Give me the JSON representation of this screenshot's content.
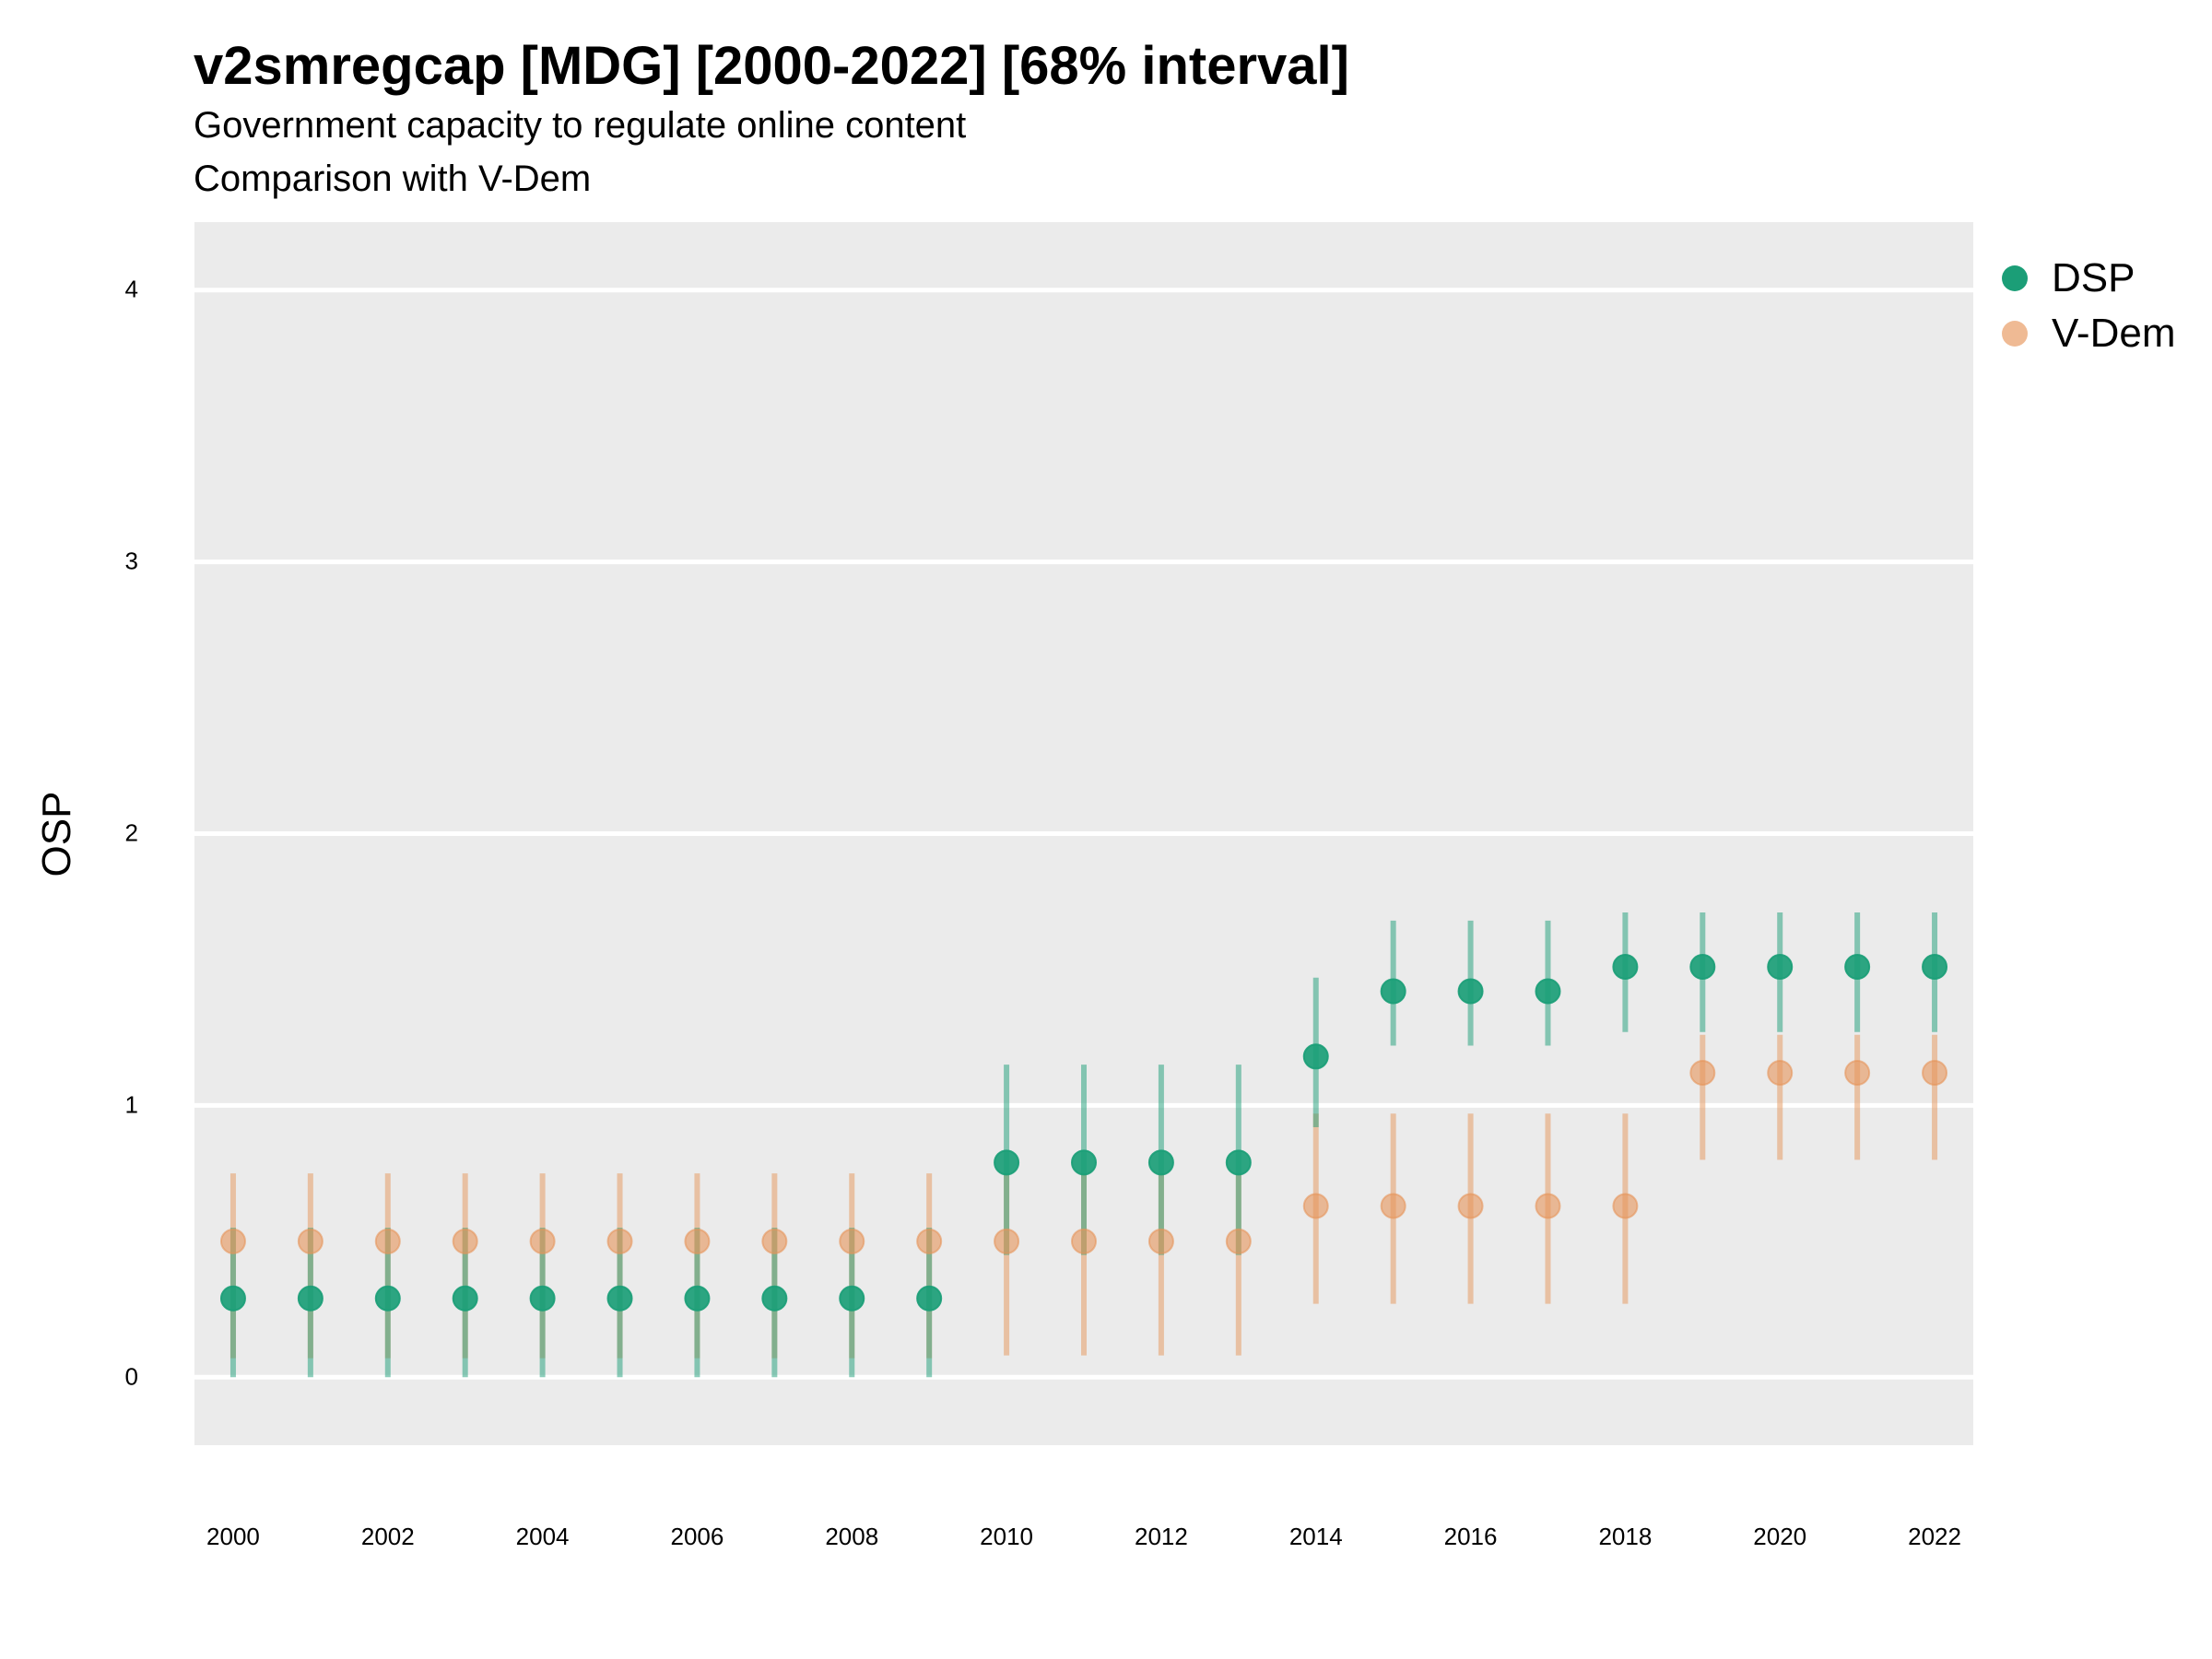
{
  "title": "v2smregcap [MDG] [2000-2022] [68% interval]",
  "subtitle_line1": "Government capacity to regulate online content",
  "subtitle_line2": "Comparison with V-Dem",
  "colors": {
    "panel": "#EBEBEB",
    "gridline": "#FFFFFF",
    "dsp": "#1B9E77",
    "vdem": "#E6955A"
  },
  "chart_data": {
    "type": "scatter",
    "ylabel": "OSP",
    "xlabel": "",
    "ylim": [
      -0.25,
      4.25
    ],
    "xlim": [
      1999.5,
      2022.5
    ],
    "yticks": [
      0,
      1,
      2,
      3,
      4
    ],
    "xticks": [
      2000,
      2002,
      2004,
      2006,
      2008,
      2010,
      2012,
      2014,
      2016,
      2018,
      2020,
      2022
    ],
    "grid": true,
    "legend_position": "right",
    "interval": "68%",
    "x": [
      2000,
      2001,
      2002,
      2003,
      2004,
      2005,
      2006,
      2007,
      2008,
      2009,
      2010,
      2011,
      2012,
      2013,
      2014,
      2015,
      2016,
      2017,
      2018,
      2019,
      2020,
      2021,
      2022
    ],
    "series": [
      {
        "name": "DSP",
        "color": "#1B9E77",
        "values": [
          0.29,
          0.29,
          0.29,
          0.29,
          0.29,
          0.29,
          0.29,
          0.29,
          0.29,
          0.29,
          0.79,
          0.79,
          0.79,
          0.79,
          1.18,
          1.42,
          1.42,
          1.42,
          1.51,
          1.51,
          1.51,
          1.51,
          1.51
        ],
        "lower": [
          0.0,
          0.0,
          0.0,
          0.0,
          0.0,
          0.0,
          0.0,
          0.0,
          0.0,
          0.0,
          0.45,
          0.45,
          0.45,
          0.45,
          0.92,
          1.22,
          1.22,
          1.22,
          1.27,
          1.27,
          1.27,
          1.27,
          1.27
        ],
        "upper": [
          0.55,
          0.55,
          0.55,
          0.55,
          0.55,
          0.55,
          0.55,
          0.55,
          0.55,
          0.55,
          1.15,
          1.15,
          1.15,
          1.15,
          1.47,
          1.68,
          1.68,
          1.68,
          1.71,
          1.71,
          1.71,
          1.71,
          1.71
        ]
      },
      {
        "name": "V-Dem",
        "color": "#E6955A",
        "values": [
          0.5,
          0.5,
          0.5,
          0.5,
          0.5,
          0.5,
          0.5,
          0.5,
          0.5,
          0.5,
          0.5,
          0.5,
          0.5,
          0.5,
          0.63,
          0.63,
          0.63,
          0.63,
          0.63,
          1.12,
          1.12,
          1.12,
          1.12
        ],
        "lower": [
          0.07,
          0.07,
          0.07,
          0.07,
          0.07,
          0.07,
          0.07,
          0.07,
          0.07,
          0.07,
          0.08,
          0.08,
          0.08,
          0.08,
          0.27,
          0.27,
          0.27,
          0.27,
          0.27,
          0.8,
          0.8,
          0.8,
          0.8
        ],
        "upper": [
          0.75,
          0.75,
          0.75,
          0.75,
          0.75,
          0.75,
          0.75,
          0.75,
          0.75,
          0.75,
          0.75,
          0.75,
          0.75,
          0.75,
          0.97,
          0.97,
          0.97,
          0.97,
          0.97,
          1.26,
          1.26,
          1.26,
          1.26
        ]
      }
    ]
  }
}
